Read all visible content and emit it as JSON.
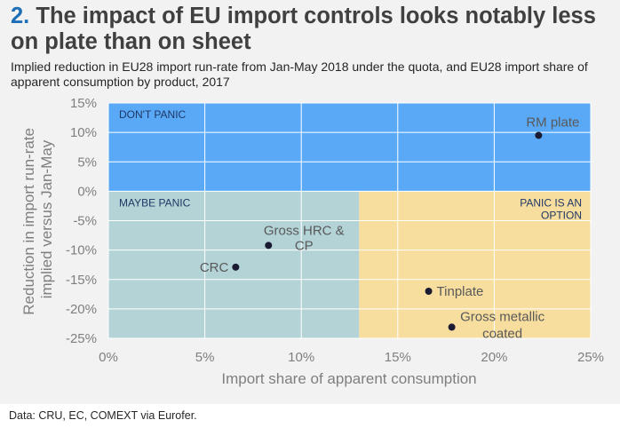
{
  "header": {
    "title_number": "2.",
    "title_text": "The impact of EU import controls looks notably less on plate than on sheet",
    "subtitle": "Implied reduction in EU28 import run-rate from Jan-May 2018 under the quota, and EU28 import share of apparent consumption by product, 2017"
  },
  "footer": {
    "source": "Data: CRU, EC, COMEXT via Eurofer."
  },
  "colors": {
    "dont_panic": "#5aa9f7",
    "maybe_panic": "#b4d3d7",
    "panic_option": "#f7de9f",
    "point": "#1a1a33"
  },
  "chart_data": {
    "type": "scatter",
    "title": "",
    "xlabel": "Import share of apparent consumption",
    "ylabel_lines": [
      "Reduction in import run-rate",
      "implied versus Jan-May"
    ],
    "xlim": [
      0,
      25
    ],
    "ylim": [
      -25,
      15
    ],
    "x_ticks": [
      0,
      5,
      10,
      15,
      20,
      25
    ],
    "x_tick_labels": [
      "0%",
      "5%",
      "10%",
      "15%",
      "20%",
      "25%"
    ],
    "y_ticks": [
      15,
      10,
      5,
      0,
      -5,
      -10,
      -15,
      -20,
      -25
    ],
    "y_tick_labels": [
      "15%",
      "10%",
      "5%",
      "0%",
      "-5%",
      "-10%",
      "-15%",
      "-20%",
      "-25%"
    ],
    "grid": true,
    "zones": [
      {
        "label_lines": [
          "DON'T PANIC"
        ],
        "x0": 0,
        "x1": 25,
        "y0": 0,
        "y1": 15,
        "color_key": "dont_panic",
        "label_align": "left"
      },
      {
        "label_lines": [
          "MAYBE PANIC"
        ],
        "x0": 0,
        "x1": 13,
        "y0": -25,
        "y1": 0,
        "color_key": "maybe_panic",
        "label_align": "left"
      },
      {
        "label_lines": [
          "PANIC IS AN",
          "OPTION"
        ],
        "x0": 13,
        "x1": 25,
        "y0": -25,
        "y1": 0,
        "color_key": "panic_option",
        "label_align": "right"
      }
    ],
    "points": [
      {
        "label_lines": [
          "RM plate"
        ],
        "x": 22.3,
        "y": 9.5,
        "label_pos": "above"
      },
      {
        "label_lines": [
          "Gross HRC &",
          "CP"
        ],
        "x": 8.3,
        "y": -9.2,
        "label_pos": "above-right"
      },
      {
        "label_lines": [
          "CRC"
        ],
        "x": 6.6,
        "y": -12.9,
        "label_pos": "left"
      },
      {
        "label_lines": [
          "Tinplate"
        ],
        "x": 16.6,
        "y": -17.0,
        "label_pos": "right"
      },
      {
        "label_lines": [
          "Gross metallic",
          "coated"
        ],
        "x": 17.8,
        "y": -23.1,
        "label_pos": "right-split"
      }
    ]
  }
}
